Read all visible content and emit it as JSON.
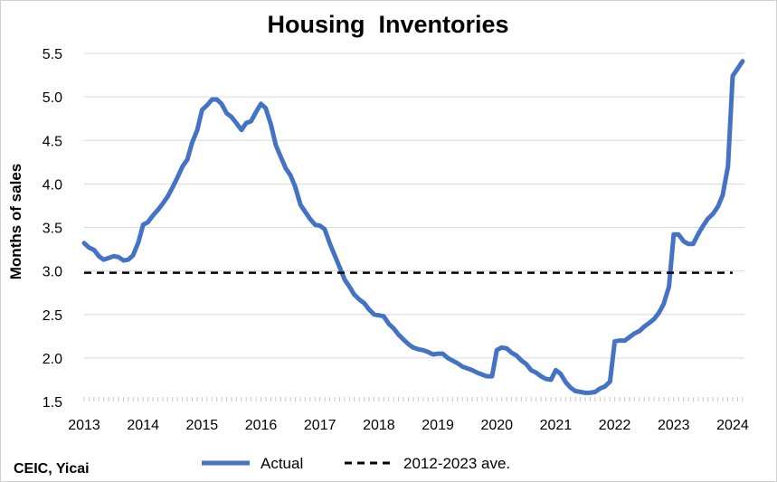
{
  "chart_data": {
    "type": "line",
    "title": "Housing  Inventories",
    "ylabel": "Months of sales",
    "xlabel": "",
    "source": "CEIC, Yicai",
    "ylim": [
      1.5,
      5.5
    ],
    "xlim": [
      2013.0,
      2024.2
    ],
    "yticks": [
      "1.5",
      "2.0",
      "2.5",
      "3.0",
      "3.5",
      "4.0",
      "4.5",
      "5.0",
      "5.5"
    ],
    "xticks": [
      "2013",
      "2014",
      "2015",
      "2016",
      "2017",
      "2018",
      "2019",
      "2020",
      "2021",
      "2022",
      "2023",
      "2024"
    ],
    "grid": true,
    "legend_position": "bottom",
    "series": [
      {
        "name": "Actual",
        "style": "solid",
        "color": "#4472C4",
        "x": [
          2013.0,
          2013.08,
          2013.17,
          2013.25,
          2013.33,
          2013.42,
          2013.5,
          2013.58,
          2013.67,
          2013.75,
          2013.83,
          2013.92,
          2014.0,
          2014.08,
          2014.17,
          2014.25,
          2014.33,
          2014.42,
          2014.5,
          2014.58,
          2014.67,
          2014.75,
          2014.83,
          2014.92,
          2015.0,
          2015.08,
          2015.17,
          2015.25,
          2015.33,
          2015.42,
          2015.5,
          2015.58,
          2015.67,
          2015.75,
          2015.83,
          2015.92,
          2016.0,
          2016.08,
          2016.17,
          2016.25,
          2016.33,
          2016.42,
          2016.5,
          2016.58,
          2016.67,
          2016.75,
          2016.83,
          2016.92,
          2017.0,
          2017.08,
          2017.17,
          2017.25,
          2017.33,
          2017.42,
          2017.5,
          2017.58,
          2017.67,
          2017.75,
          2017.83,
          2017.92,
          2018.0,
          2018.08,
          2018.17,
          2018.25,
          2018.33,
          2018.42,
          2018.5,
          2018.58,
          2018.67,
          2018.75,
          2018.83,
          2018.92,
          2019.0,
          2019.08,
          2019.17,
          2019.25,
          2019.33,
          2019.42,
          2019.5,
          2019.58,
          2019.67,
          2019.75,
          2019.83,
          2019.92,
          2020.0,
          2020.08,
          2020.17,
          2020.25,
          2020.33,
          2020.42,
          2020.5,
          2020.58,
          2020.67,
          2020.75,
          2020.83,
          2020.92,
          2021.0,
          2021.08,
          2021.17,
          2021.25,
          2021.33,
          2021.42,
          2021.5,
          2021.58,
          2021.67,
          2021.75,
          2021.83,
          2021.92,
          2022.0,
          2022.08,
          2022.17,
          2022.25,
          2022.33,
          2022.42,
          2022.5,
          2022.58,
          2022.67,
          2022.75,
          2022.83,
          2022.92,
          2023.0,
          2023.08,
          2023.17,
          2023.25,
          2023.33,
          2023.42,
          2023.5,
          2023.58,
          2023.67,
          2023.75,
          2023.83,
          2023.92,
          2024.0,
          2024.08,
          2024.17
        ],
        "values": [
          3.32,
          3.27,
          3.24,
          3.17,
          3.13,
          3.15,
          3.17,
          3.16,
          3.12,
          3.13,
          3.18,
          3.33,
          3.53,
          3.56,
          3.64,
          3.7,
          3.77,
          3.86,
          3.96,
          4.07,
          4.2,
          4.28,
          4.47,
          4.62,
          4.85,
          4.9,
          4.97,
          4.97,
          4.92,
          4.81,
          4.77,
          4.7,
          4.62,
          4.7,
          4.72,
          4.83,
          4.92,
          4.87,
          4.68,
          4.45,
          4.32,
          4.18,
          4.1,
          3.97,
          3.76,
          3.68,
          3.6,
          3.53,
          3.52,
          3.48,
          3.31,
          3.18,
          3.05,
          2.9,
          2.82,
          2.73,
          2.67,
          2.63,
          2.56,
          2.5,
          2.49,
          2.48,
          2.39,
          2.34,
          2.27,
          2.21,
          2.16,
          2.12,
          2.1,
          2.09,
          2.07,
          2.04,
          2.05,
          2.05,
          2.0,
          1.97,
          1.94,
          1.9,
          1.88,
          1.86,
          1.83,
          1.81,
          1.79,
          1.79,
          2.09,
          2.12,
          2.11,
          2.06,
          2.03,
          1.97,
          1.93,
          1.86,
          1.83,
          1.79,
          1.76,
          1.75,
          1.86,
          1.82,
          1.72,
          1.66,
          1.62,
          1.61,
          1.6,
          1.6,
          1.61,
          1.65,
          1.67,
          1.73,
          2.19,
          2.2,
          2.2,
          2.24,
          2.28,
          2.31,
          2.36,
          2.4,
          2.45,
          2.52,
          2.62,
          2.82,
          3.42,
          3.42,
          3.34,
          3.31,
          3.31,
          3.43,
          3.52,
          3.6,
          3.66,
          3.74,
          3.87,
          4.2,
          5.24,
          5.32,
          5.41
        ]
      },
      {
        "name": "2012-2023 ave.",
        "style": "dashed",
        "color": "#000000",
        "x": [
          2013.0,
          2024.0
        ],
        "values": [
          2.98,
          2.98
        ]
      }
    ]
  },
  "legend": {
    "actual_label": "Actual",
    "average_label": "2012-2023 ave."
  }
}
